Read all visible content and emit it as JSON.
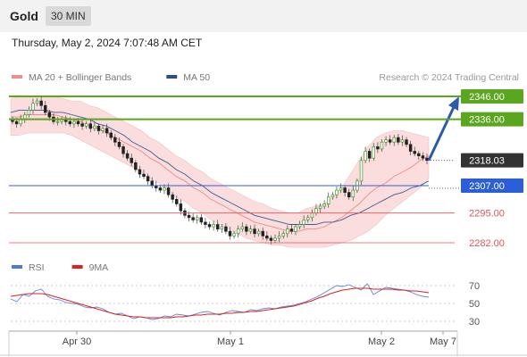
{
  "header": {
    "symbol": "Gold",
    "interval": "30 MIN",
    "datetime": "Thursday, May 2, 2024 7:07:48 AM CET"
  },
  "legend": {
    "items": [
      {
        "label": "MA 20 + Bollinger Bands",
        "color": "#f08c8c"
      },
      {
        "label": "MA 50",
        "color": "#2a4f8f"
      }
    ],
    "credit": "Research © 2024 Trading Central"
  },
  "rsi_legend": {
    "items": [
      {
        "label": "RSI",
        "color": "#4a7ad6"
      },
      {
        "label": "9MA",
        "color": "#e0201c"
      }
    ]
  },
  "colors": {
    "green": "#5aa61e",
    "blue": "#2c5ed8",
    "red": "#e05555",
    "band": "#fbdada",
    "current": "#333333"
  },
  "chart_data": [
    {
      "type": "candlestick",
      "xlabel": "",
      "ylabel": "",
      "ylim": [
        2278,
        2350
      ],
      "x_ticks": [
        "Apr 30",
        "May 1",
        "May 2",
        "May 7"
      ],
      "levels": [
        {
          "value": 2346.0,
          "label": "2346.00",
          "kind": "resistance"
        },
        {
          "value": 2336.0,
          "label": "2336.00",
          "kind": "resistance"
        },
        {
          "value": 2318.03,
          "label": "2318.03",
          "kind": "current"
        },
        {
          "value": 2307.0,
          "label": "2307.00",
          "kind": "pivot"
        },
        {
          "value": 2295.0,
          "label": "2295.00",
          "kind": "support"
        },
        {
          "value": 2282.0,
          "label": "2282.00",
          "kind": "support"
        }
      ],
      "close": [
        2335,
        2334,
        2336,
        2338,
        2340,
        2343,
        2344,
        2342,
        2339,
        2337,
        2335,
        2335,
        2336,
        2335,
        2334,
        2335,
        2334,
        2333,
        2334,
        2332,
        2333,
        2331,
        2332,
        2330,
        2328,
        2326,
        2324,
        2321,
        2319,
        2317,
        2314,
        2312,
        2311,
        2309,
        2307,
        2306,
        2305,
        2306,
        2303,
        2301,
        2299,
        2296,
        2294,
        2293,
        2292,
        2293,
        2291,
        2290,
        2289,
        2290,
        2288,
        2289,
        2287,
        2285,
        2286,
        2288,
        2289,
        2287,
        2288,
        2286,
        2287,
        2285,
        2284,
        2283,
        2284,
        2285,
        2286,
        2288,
        2287,
        2289,
        2290,
        2292,
        2293,
        2295,
        2297,
        2298,
        2299,
        2302,
        2303,
        2305,
        2306,
        2304,
        2302,
        2305,
        2309,
        2318,
        2322,
        2319,
        2324,
        2323,
        2326,
        2327,
        2326,
        2328,
        2326,
        2327,
        2325,
        2322,
        2321,
        2320,
        2319,
        2318
      ],
      "price_label": "2318.03",
      "ma20": [
        2337,
        2337,
        2338,
        2338,
        2338,
        2338,
        2337,
        2336,
        2335,
        2333,
        2332,
        2330,
        2328,
        2326,
        2324,
        2322,
        2319,
        2317,
        2314,
        2311,
        2309,
        2306,
        2304,
        2301,
        2299,
        2297,
        2295,
        2293,
        2291,
        2290,
        2289,
        2288,
        2287,
        2287,
        2288,
        2288,
        2289,
        2291,
        2293,
        2296,
        2299,
        2303,
        2306,
        2308,
        2311,
        2313,
        2315,
        2318,
        2320
      ],
      "ma50": [
        2339,
        2340,
        2340,
        2340,
        2340,
        2339,
        2339,
        2338,
        2337,
        2336,
        2334,
        2333,
        2331,
        2329,
        2326,
        2324,
        2322,
        2319,
        2317,
        2314,
        2312,
        2309,
        2307,
        2304,
        2302,
        2300,
        2298,
        2296,
        2294,
        2293,
        2292,
        2291,
        2290,
        2290,
        2290,
        2290,
        2291,
        2291,
        2292,
        2294,
        2295,
        2297,
        2299,
        2301,
        2303,
        2304,
        2306,
        2307,
        2309
      ],
      "bb_upper": [
        2345,
        2346,
        2346,
        2346,
        2346,
        2346,
        2345,
        2344,
        2344,
        2342,
        2341,
        2339,
        2337,
        2335,
        2333,
        2331,
        2328,
        2326,
        2323,
        2320,
        2318,
        2315,
        2313,
        2310,
        2308,
        2306,
        2304,
        2302,
        2300,
        2299,
        2297,
        2296,
        2295,
        2295,
        2297,
        2298,
        2299,
        2302,
        2306,
        2312,
        2318,
        2324,
        2328,
        2330,
        2331,
        2331,
        2330,
        2329,
        2328
      ],
      "bb_lower": [
        2329,
        2329,
        2330,
        2330,
        2330,
        2330,
        2330,
        2329,
        2327,
        2325,
        2323,
        2321,
        2319,
        2317,
        2315,
        2313,
        2310,
        2308,
        2305,
        2302,
        2300,
        2297,
        2295,
        2292,
        2290,
        2288,
        2286,
        2284,
        2283,
        2282,
        2281,
        2281,
        2280,
        2280,
        2280,
        2280,
        2280,
        2281,
        2282,
        2283,
        2285,
        2287,
        2290,
        2294,
        2297,
        2300,
        2303,
        2306,
        2310
      ],
      "projection": {
        "from": 2318,
        "to": 2346
      }
    },
    {
      "type": "line",
      "xlabel": "",
      "ylabel": "",
      "ylim": [
        20,
        80
      ],
      "y_ticks": [
        70,
        50,
        30
      ],
      "series": [
        {
          "name": "RSI",
          "values": [
            55,
            52,
            60,
            58,
            64,
            66,
            58,
            55,
            54,
            51,
            50,
            49,
            46,
            45,
            46,
            44,
            40,
            38,
            39,
            36,
            33,
            35,
            34,
            32,
            33,
            36,
            35,
            38,
            37,
            36,
            38,
            40,
            41,
            39,
            37,
            40,
            42,
            41,
            40,
            43,
            42,
            44,
            45,
            44,
            46,
            47,
            48,
            50,
            52,
            55,
            58,
            62,
            66,
            70,
            69,
            71,
            68,
            65,
            72,
            60,
            64,
            68,
            67,
            66,
            65,
            63,
            60,
            58,
            57
          ]
        },
        {
          "name": "9MA",
          "values": [
            58,
            59,
            60,
            61,
            61,
            61,
            60,
            58,
            56,
            54,
            52,
            50,
            48,
            46,
            44,
            42,
            40,
            38,
            37,
            36,
            35,
            35,
            34,
            34,
            34,
            34,
            34,
            35,
            35,
            36,
            37,
            37,
            38,
            38,
            38,
            39,
            39,
            40,
            40,
            41,
            41,
            42,
            43,
            44,
            45,
            46,
            47,
            49,
            51,
            53,
            56,
            58,
            61,
            63,
            65,
            66,
            67,
            67,
            67,
            66,
            66,
            66,
            66,
            65,
            65,
            64,
            64,
            63,
            62
          ]
        }
      ]
    }
  ]
}
